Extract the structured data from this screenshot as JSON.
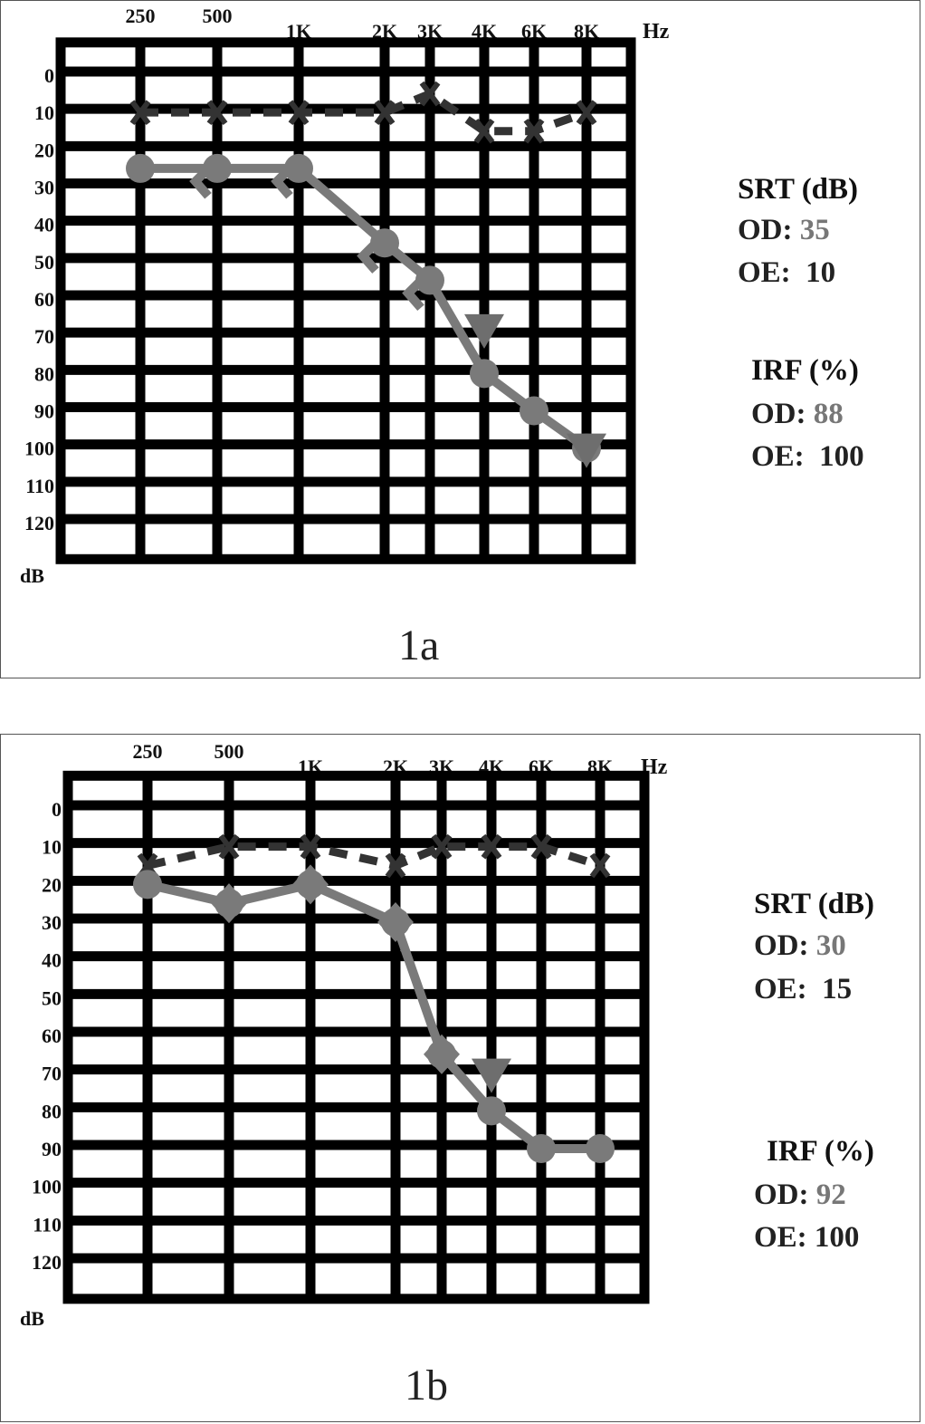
{
  "chart_data": [
    {
      "type": "line",
      "panel_label": "1a",
      "x_unit_label": "Hz",
      "y_unit_label": "dB",
      "x_tick_labels": [
        "250",
        "500",
        "1K",
        "2K",
        "3K",
        "4K",
        "6K",
        "8K"
      ],
      "y_tick_labels": [
        "0",
        "10",
        "20",
        "30",
        "40",
        "50",
        "60",
        "70",
        "80",
        "90",
        "100",
        "110",
        "120"
      ],
      "ylim": [
        120,
        -10
      ],
      "y_inverted": true,
      "grid": true,
      "series": [
        {
          "marker": "x",
          "style": "dashed",
          "color": "#333333",
          "points": [
            [
              250,
              10
            ],
            [
              500,
              10
            ],
            [
              1000,
              10
            ],
            [
              2000,
              10
            ],
            [
              3000,
              5
            ],
            [
              4000,
              15
            ],
            [
              6000,
              15
            ],
            [
              8000,
              10
            ]
          ]
        },
        {
          "marker": "circle",
          "style": "solid",
          "color": "#7a7a7a",
          "points": [
            [
              250,
              25
            ],
            [
              500,
              25
            ],
            [
              1000,
              25
            ],
            [
              2000,
              45
            ],
            [
              3000,
              55
            ],
            [
              4000,
              80
            ],
            [
              6000,
              90
            ],
            [
              8000,
              100
            ]
          ]
        },
        {
          "marker": "bracket",
          "style": "none",
          "color": "#7a7a7a",
          "points": [
            [
              500,
              28
            ],
            [
              1000,
              28
            ],
            [
              2000,
              48
            ],
            [
              3000,
              58
            ]
          ]
        },
        {
          "marker": "triangle-down",
          "style": "none",
          "color": "#6e6e6e",
          "points": [
            [
              4000,
              68
            ],
            [
              8000,
              100
            ]
          ]
        }
      ],
      "info": {
        "srt_title": "SRT (dB)",
        "srt_od_label": "OD:",
        "srt_od_value": "35",
        "srt_oe_label": "OE:",
        "srt_oe_value": "10",
        "irf_title": "IRF (%)",
        "irf_od_label": "OD:",
        "irf_od_value": "88",
        "irf_oe_label": "OE:",
        "irf_oe_value": "100"
      }
    },
    {
      "type": "line",
      "panel_label": "1b",
      "x_unit_label": "Hz",
      "y_unit_label": "dB",
      "x_tick_labels": [
        "250",
        "500",
        "1K",
        "2K",
        "3K",
        "4K",
        "6K",
        "8K"
      ],
      "y_tick_labels": [
        "0",
        "10",
        "20",
        "30",
        "40",
        "50",
        "60",
        "70",
        "80",
        "90",
        "100",
        "110",
        "120"
      ],
      "ylim": [
        120,
        -10
      ],
      "y_inverted": true,
      "grid": true,
      "series": [
        {
          "marker": "x",
          "style": "dashed",
          "color": "#333333",
          "points": [
            [
              250,
              15
            ],
            [
              500,
              10
            ],
            [
              1000,
              10
            ],
            [
              2000,
              15
            ],
            [
              3000,
              10
            ],
            [
              4000,
              10
            ],
            [
              6000,
              10
            ],
            [
              8000,
              15
            ]
          ]
        },
        {
          "marker": "circle",
          "style": "solid",
          "color": "#7a7a7a",
          "points": [
            [
              250,
              20
            ],
            [
              500,
              25
            ],
            [
              1000,
              20
            ],
            [
              2000,
              30
            ],
            [
              3000,
              65
            ],
            [
              4000,
              80
            ],
            [
              6000,
              90
            ],
            [
              8000,
              90
            ]
          ]
        },
        {
          "marker": "diamond",
          "style": "none",
          "color": "#7a7a7a",
          "points": [
            [
              500,
              25
            ],
            [
              1000,
              20
            ],
            [
              2000,
              30
            ],
            [
              3000,
              65
            ]
          ]
        },
        {
          "marker": "triangle-down",
          "style": "none",
          "color": "#6e6e6e",
          "points": [
            [
              4000,
              70
            ]
          ]
        }
      ],
      "info": {
        "srt_title": "SRT (dB)",
        "srt_od_label": "OD:",
        "srt_od_value": "30",
        "srt_oe_label": "OE:",
        "srt_oe_value": "15",
        "irf_title": "IRF (%)",
        "irf_od_label": "OD:",
        "irf_od_value": "92",
        "irf_oe_label": "OE:",
        "irf_oe_value": "100"
      }
    }
  ]
}
